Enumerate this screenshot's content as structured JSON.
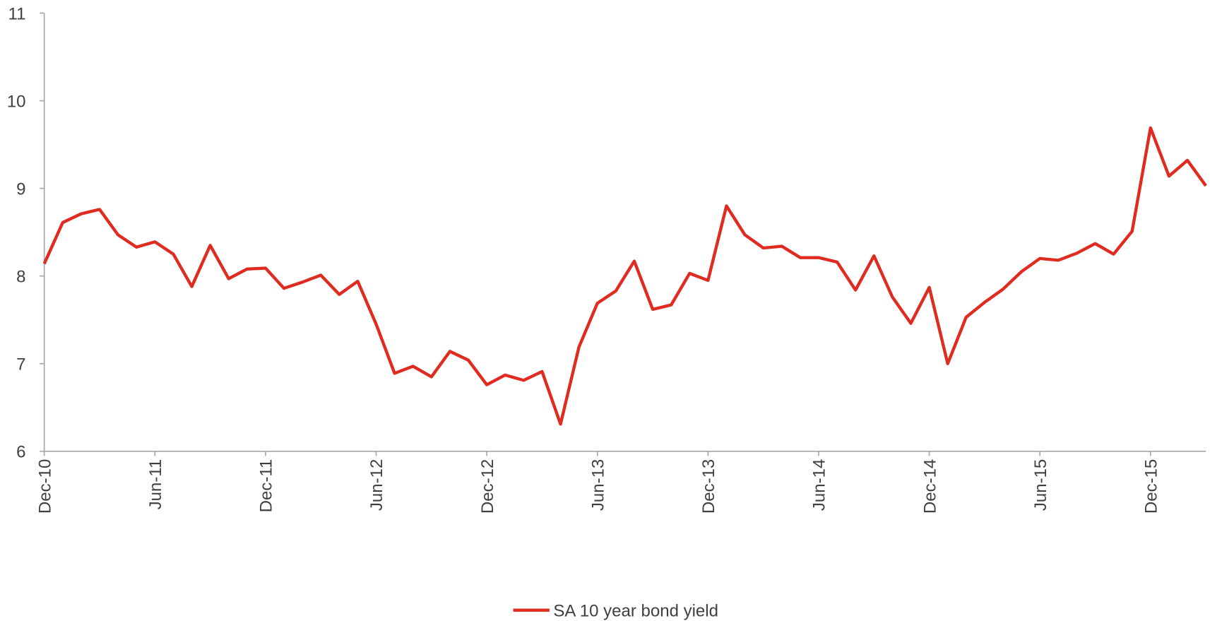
{
  "chart_data": {
    "type": "line",
    "categories": [
      "Dec-10",
      null,
      null,
      null,
      null,
      null,
      "Jun-11",
      null,
      null,
      null,
      null,
      null,
      "Dec-11",
      null,
      null,
      null,
      null,
      null,
      "Jun-12",
      null,
      null,
      null,
      null,
      null,
      "Dec-12",
      null,
      null,
      null,
      null,
      null,
      "Jun-13",
      null,
      null,
      null,
      null,
      null,
      "Dec-13",
      null,
      null,
      null,
      null,
      null,
      "Jun-14",
      null,
      null,
      null,
      null,
      null,
      "Dec-14",
      null,
      null,
      null,
      null,
      null,
      "Jun-15",
      null,
      null,
      null,
      null,
      null,
      "Dec-15",
      null,
      null,
      null
    ],
    "series": [
      {
        "name": "SA 10 year bond yield",
        "color": "#e02b20",
        "values": [
          8.14,
          8.61,
          8.71,
          8.76,
          8.47,
          8.33,
          8.39,
          8.25,
          7.88,
          8.35,
          7.97,
          8.08,
          8.09,
          7.86,
          7.93,
          8.01,
          7.79,
          7.94,
          7.45,
          6.89,
          6.97,
          6.85,
          7.14,
          7.04,
          6.76,
          6.87,
          6.81,
          6.91,
          6.31,
          7.19,
          7.69,
          7.83,
          8.17,
          7.62,
          7.67,
          8.03,
          7.95,
          8.8,
          8.47,
          8.32,
          8.34,
          8.21,
          8.21,
          8.16,
          7.84,
          8.23,
          7.76,
          7.46,
          7.87,
          7.0,
          7.53,
          7.7,
          7.85,
          8.05,
          8.2,
          8.18,
          8.26,
          8.37,
          8.25,
          8.51,
          9.69,
          9.14,
          9.32,
          9.03
        ]
      }
    ],
    "ylim": [
      6,
      11
    ],
    "yticks": [
      6,
      7,
      8,
      9,
      10,
      11
    ],
    "grid": false,
    "legend": "bottom"
  }
}
